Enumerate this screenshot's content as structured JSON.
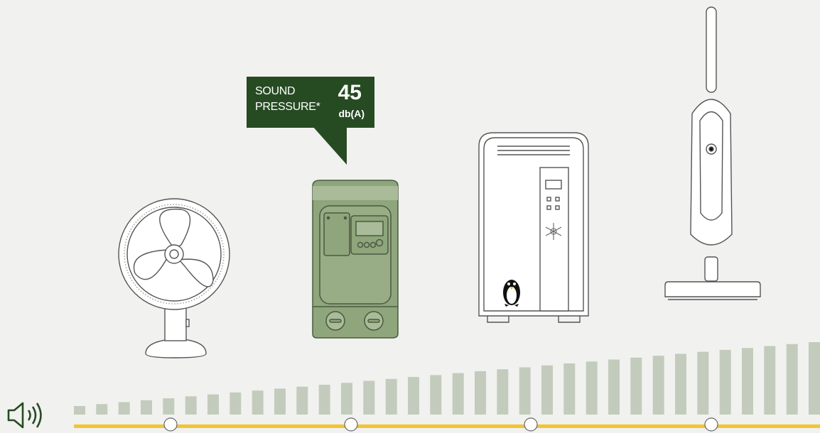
{
  "sound_label_line1": "SOUND",
  "sound_label_line2": "PRESSURE*",
  "sound_value": "45",
  "sound_unit": "db(A)",
  "colors": {
    "background": "#f1f1f0",
    "callout": "#264b22",
    "pump_fill": "#8fa57c",
    "bars": "#c3ccbc",
    "baseline": "#f2c531"
  },
  "devices": [
    "fan-icon",
    "pump-icon",
    "refrigerator-icon",
    "vacuum-cleaner-icon"
  ],
  "speaker_icon": "speaker-volume-icon",
  "selected_marker": 1,
  "level_bar_count": 34
}
